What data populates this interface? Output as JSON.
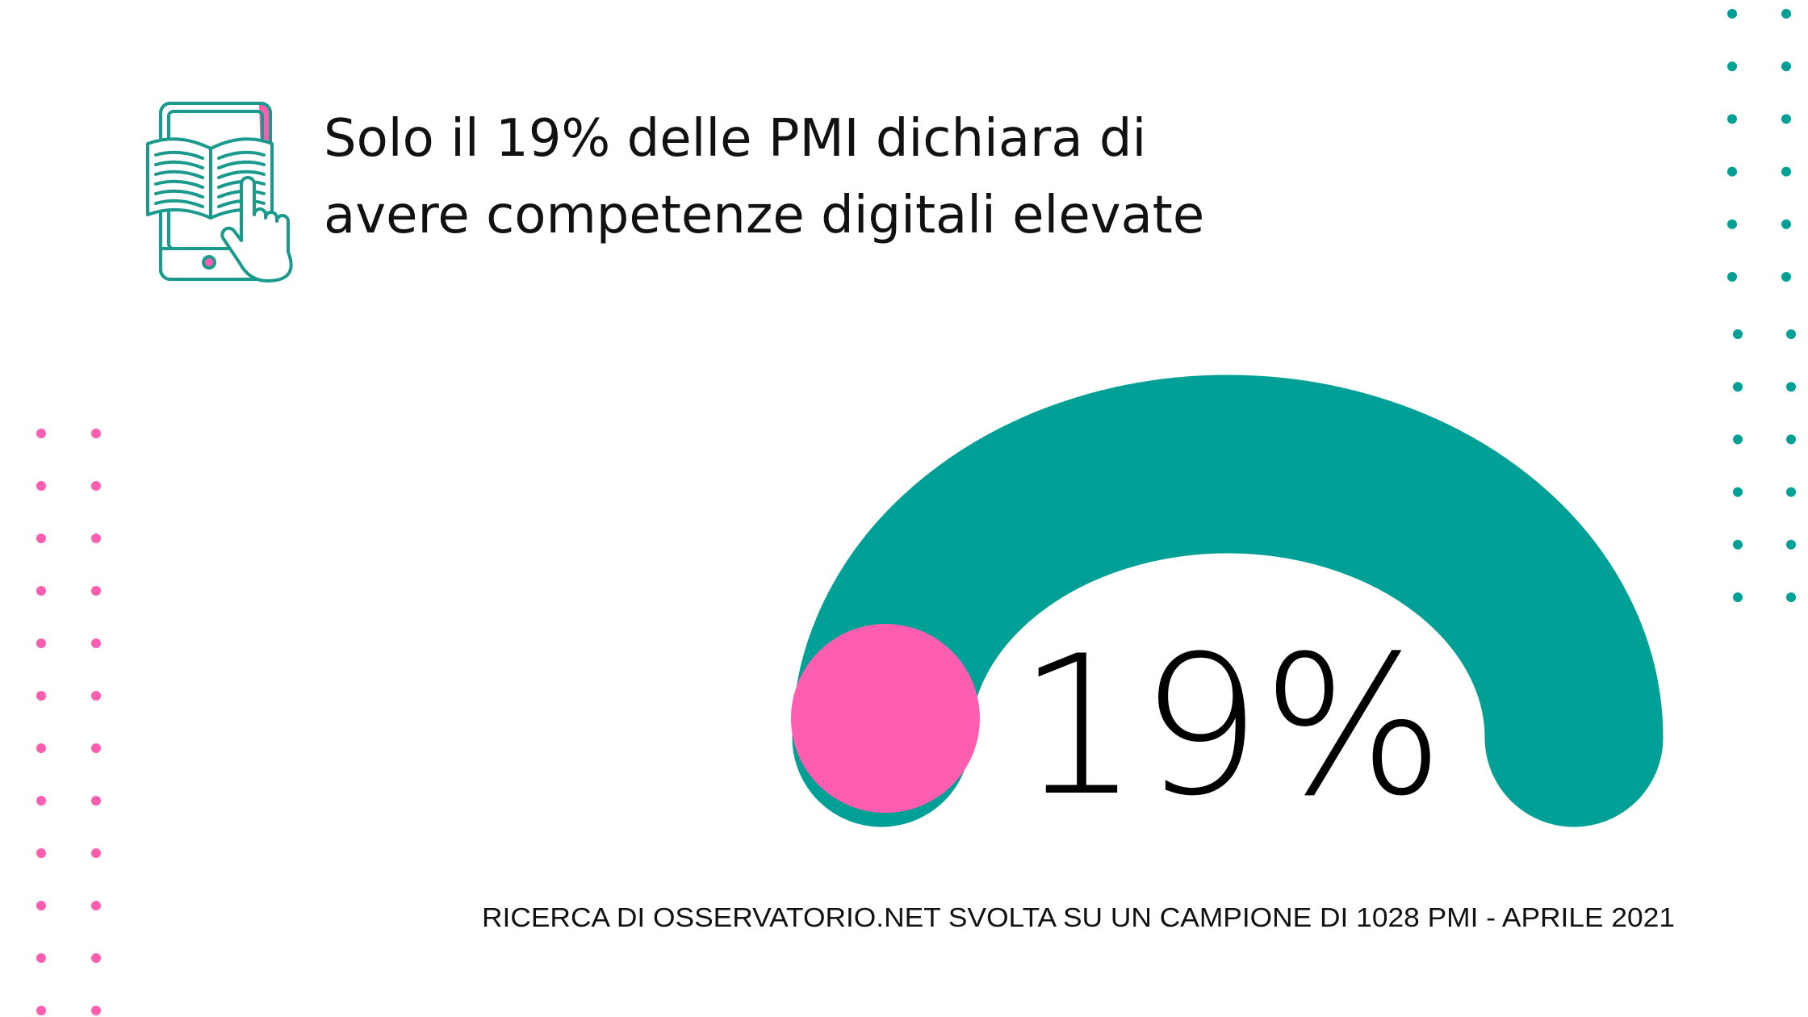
{
  "header": {
    "title_line1": "Solo il 19% delle PMI dichiara di",
    "title_line2": "avere competenze digitali elevate",
    "icon": "tablet-book-hand-icon"
  },
  "chart_data": {
    "type": "pie",
    "style": "semicircular gauge",
    "value": 19,
    "max": 100,
    "value_label": "19%",
    "track_color": "#00a096",
    "marker_color": "#ff5eb0"
  },
  "footer": {
    "source": "RICERCA DI OSSERVATORIO.NET SVOLTA SU UN CAMPIONE DI 1028 PMI - APRILE 2021"
  },
  "colors": {
    "teal": "#00a096",
    "pink": "#ff5eb0",
    "text": "#111111"
  }
}
